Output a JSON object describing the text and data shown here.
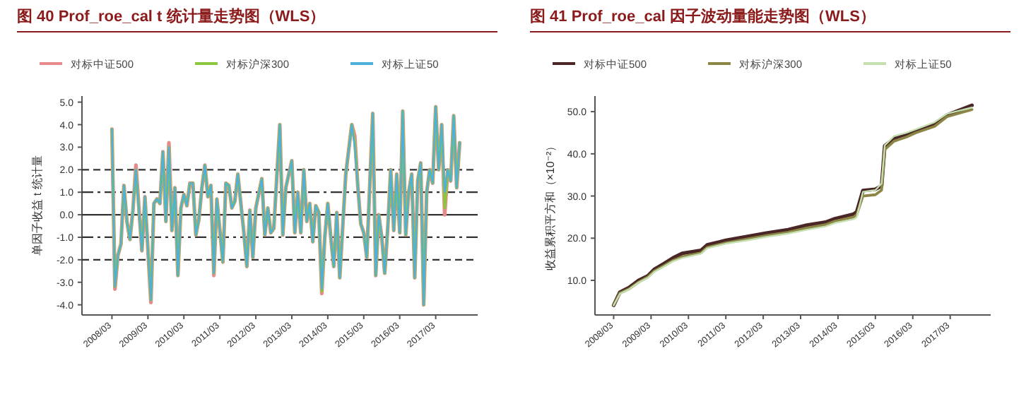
{
  "chart_data": [
    {
      "type": "line",
      "title": "图 40 Prof_roe_cal t 统计量走势图（WLS）",
      "ylabel": "单因子收益 t 统计量",
      "legend": "top",
      "xlim": [
        "2007-05",
        "2018-05"
      ],
      "ylim": [
        -4.45,
        5.27
      ],
      "yticks": [
        {
          "value": -4,
          "label": "-4.0"
        },
        {
          "value": -3,
          "label": "-3.0"
        },
        {
          "value": -2,
          "label": "-2.0"
        },
        {
          "value": -1,
          "label": "-1.0"
        },
        {
          "value": 0,
          "label": "0.0"
        },
        {
          "value": 1,
          "label": "1.0"
        },
        {
          "value": 2,
          "label": "2.0"
        },
        {
          "value": 3,
          "label": "3.0"
        },
        {
          "value": 4,
          "label": "4.0"
        },
        {
          "value": 5,
          "label": "5.0"
        }
      ],
      "xticks": [
        {
          "value": "2008-03",
          "label": "2008/03"
        },
        {
          "value": "2009-03",
          "label": "2009/03"
        },
        {
          "value": "2010-03",
          "label": "2010/03"
        },
        {
          "value": "2011-03",
          "label": "2011/03"
        },
        {
          "value": "2012-03",
          "label": "2012/03"
        },
        {
          "value": "2013-03",
          "label": "2013/03"
        },
        {
          "value": "2014-03",
          "label": "2014/03"
        },
        {
          "value": "2015-03",
          "label": "2015/03"
        },
        {
          "value": "2016-03",
          "label": "2016/03"
        },
        {
          "value": "2017-03",
          "label": "2017/03"
        }
      ],
      "ref_lines": [
        {
          "axis": "y",
          "value": 2,
          "line_style": "dashed",
          "color": "#333333"
        },
        {
          "axis": "y",
          "value": 1,
          "line_style": "dashdot",
          "color": "#333333"
        },
        {
          "axis": "y",
          "value": 0,
          "line_style": "solid",
          "color": "#333333"
        },
        {
          "axis": "y",
          "value": -1,
          "line_style": "dashdot",
          "color": "#333333"
        },
        {
          "axis": "y",
          "value": -2,
          "line_style": "dashed",
          "color": "#333333"
        }
      ],
      "x": [
        "2008-03",
        "2008-04",
        "2008-05",
        "2008-06",
        "2008-07",
        "2008-08",
        "2008-09",
        "2008-10",
        "2008-11",
        "2009-01",
        "2009-02",
        "2009-04",
        "2009-05",
        "2009-06",
        "2009-07",
        "2009-08",
        "2009-09",
        "2009-10",
        "2009-11",
        "2009-12",
        "2010-01",
        "2010-02",
        "2010-03",
        "2010-04",
        "2010-05",
        "2010-06",
        "2010-07",
        "2010-08",
        "2010-09",
        "2010-10",
        "2010-11",
        "2010-12",
        "2011-01",
        "2011-02",
        "2011-03",
        "2011-04",
        "2011-05",
        "2011-06",
        "2011-07",
        "2011-08",
        "2011-09",
        "2011-11",
        "2011-12",
        "2012-01",
        "2012-02",
        "2012-03",
        "2012-05",
        "2012-06",
        "2012-07",
        "2012-08",
        "2012-09",
        "2012-11",
        "2012-12",
        "2013-01",
        "2013-03",
        "2013-04",
        "2013-05",
        "2013-06",
        "2013-07",
        "2013-08",
        "2013-09",
        "2013-10",
        "2013-11",
        "2013-12",
        "2014-01",
        "2014-02",
        "2014-03",
        "2014-04",
        "2014-05",
        "2014-06",
        "2014-07",
        "2014-09",
        "2014-11",
        "2014-12",
        "2015-01",
        "2015-02",
        "2015-03",
        "2015-04",
        "2015-06",
        "2015-07",
        "2015-08",
        "2015-09",
        "2015-10",
        "2015-11",
        "2015-12",
        "2016-01",
        "2016-02",
        "2016-03",
        "2016-04",
        "2016-05",
        "2016-06",
        "2016-07",
        "2016-08",
        "2016-09",
        "2016-10",
        "2016-11",
        "2016-12",
        "2017-01",
        "2017-02",
        "2017-03",
        "2017-04",
        "2017-05",
        "2017-06",
        "2017-07",
        "2017-08",
        "2017-09",
        "2017-10",
        "2017-11"
      ],
      "series": [
        {
          "name": "对标中证500",
          "color": "#e8898c",
          "values": [
            3.8,
            -3.3,
            -1.8,
            -1.3,
            1.3,
            -0.3,
            -1.1,
            0.2,
            2.2,
            -1.6,
            0.8,
            -3.9,
            0.5,
            0.7,
            0.5,
            2.8,
            -0.3,
            3.2,
            -0.7,
            1.2,
            -2.7,
            0.3,
            0.9,
            0.4,
            1.4,
            1.4,
            -0.9,
            -0.2,
            1.2,
            2.2,
            0.8,
            1.3,
            -2.7,
            0.7,
            -0.7,
            -2.1,
            1.4,
            1.3,
            0.3,
            0.6,
            1.8,
            -0.8,
            -2.3,
            0.2,
            -1.9,
            0.3,
            1.6,
            -0.9,
            0.3,
            -0.8,
            -0.6,
            4.0,
            -0.9,
            1.2,
            2.4,
            -0.8,
            1.0,
            -0.8,
            2.0,
            -0.3,
            0.5,
            -1.2,
            0.4,
            0.1,
            -3.5,
            -1.0,
            0.5,
            -1.0,
            -2.3,
            0.1,
            -2.8,
            1.8,
            4.0,
            3.5,
            1.3,
            -0.4,
            -0.8,
            -1.9,
            4.5,
            -2.7,
            0.0,
            -1.0,
            -2.6,
            -0.6,
            2.0,
            -0.7,
            1.8,
            -0.8,
            4.6,
            -0.9,
            1.0,
            1.8,
            -2.8,
            1.5,
            2.3,
            -4.0,
            1.0,
            2.0,
            1.4,
            4.8,
            2.0,
            4.0,
            0.0,
            2.0,
            1.5,
            4.4,
            1.2,
            3.2
          ]
        },
        {
          "name": "对标沪深300",
          "color": "#8cc63f",
          "values": [
            3.8,
            -3.2,
            -1.8,
            -1.3,
            1.3,
            -0.3,
            -1.1,
            0.2,
            2.0,
            -1.6,
            0.8,
            -3.8,
            0.5,
            0.7,
            0.5,
            2.8,
            -0.3,
            3.0,
            -0.7,
            1.2,
            -2.7,
            0.3,
            0.9,
            0.4,
            1.4,
            1.4,
            -0.9,
            -0.2,
            1.2,
            2.2,
            0.8,
            1.3,
            -2.6,
            0.7,
            -0.7,
            -2.1,
            1.4,
            1.3,
            0.3,
            0.6,
            1.8,
            -0.8,
            -2.3,
            0.2,
            -1.9,
            0.3,
            1.6,
            -0.9,
            0.3,
            -0.8,
            -0.6,
            4.0,
            -0.9,
            1.2,
            2.4,
            -0.8,
            1.0,
            -0.8,
            2.0,
            -0.3,
            0.5,
            -1.2,
            0.4,
            0.1,
            -3.4,
            -1.0,
            0.5,
            -1.0,
            -2.3,
            0.1,
            -2.8,
            1.8,
            4.0,
            3.2,
            1.3,
            -0.4,
            -0.8,
            -1.9,
            4.5,
            -2.7,
            0.0,
            -1.0,
            -2.6,
            -0.6,
            2.0,
            -0.7,
            1.8,
            -0.8,
            4.6,
            -0.9,
            1.0,
            1.8,
            -2.8,
            1.5,
            2.3,
            -4.0,
            1.0,
            2.0,
            1.4,
            4.8,
            2.0,
            4.0,
            0.3,
            2.0,
            1.5,
            4.4,
            1.2,
            3.2
          ]
        },
        {
          "name": "对标上证50",
          "color": "#4fb0dc",
          "values": [
            3.8,
            -3.2,
            -1.8,
            -1.3,
            1.3,
            -0.3,
            -1.1,
            0.2,
            2.0,
            -1.6,
            0.8,
            -3.8,
            0.5,
            0.7,
            0.5,
            2.8,
            -0.3,
            3.0,
            -0.7,
            1.2,
            -2.7,
            0.3,
            0.9,
            0.4,
            1.4,
            1.4,
            -0.9,
            -0.2,
            1.2,
            2.2,
            0.8,
            1.3,
            -2.6,
            0.7,
            -0.7,
            -2.1,
            1.4,
            1.3,
            0.3,
            0.6,
            1.8,
            -0.8,
            -2.3,
            0.2,
            -1.9,
            0.3,
            1.6,
            -0.9,
            0.3,
            -0.8,
            -0.6,
            4.0,
            -0.9,
            1.2,
            2.4,
            -0.8,
            1.0,
            -0.8,
            2.0,
            -0.3,
            0.5,
            -1.2,
            0.4,
            0.1,
            -3.3,
            -1.0,
            0.5,
            -1.0,
            -2.3,
            0.1,
            -2.8,
            1.8,
            4.0,
            3.0,
            1.3,
            -0.4,
            -0.8,
            -1.9,
            4.5,
            -2.7,
            0.0,
            -1.0,
            -2.6,
            -0.6,
            2.0,
            -0.7,
            1.8,
            -0.8,
            4.6,
            -0.9,
            1.0,
            1.8,
            -2.8,
            1.5,
            2.3,
            -4.0,
            1.0,
            2.0,
            1.4,
            4.8,
            2.0,
            4.0,
            1.0,
            2.0,
            1.5,
            4.4,
            1.2,
            3.2
          ]
        }
      ]
    },
    {
      "type": "line",
      "title": "图 41 Prof_roe_cal 因子波动量能走势图（WLS）",
      "ylabel": "收益累积平方和（×10⁻²）",
      "legend": "top",
      "xlim": [
        "2007-09",
        "2018-04"
      ],
      "ylim": [
        1.8,
        53.7
      ],
      "yticks": [
        {
          "value": 10,
          "label": "10.0"
        },
        {
          "value": 20,
          "label": "20.0"
        },
        {
          "value": 30,
          "label": "30.0"
        },
        {
          "value": 40,
          "label": "40.0"
        },
        {
          "value": 50,
          "label": "50.0"
        }
      ],
      "xticks": [
        {
          "value": "2008-03",
          "label": "2008/03"
        },
        {
          "value": "2009-03",
          "label": "2009/03"
        },
        {
          "value": "2010-03",
          "label": "2010/03"
        },
        {
          "value": "2011-03",
          "label": "2011/03"
        },
        {
          "value": "2012-03",
          "label": "2012/03"
        },
        {
          "value": "2013-03",
          "label": "2013/03"
        },
        {
          "value": "2014-03",
          "label": "2014/03"
        },
        {
          "value": "2015-03",
          "label": "2015/03"
        },
        {
          "value": "2016-03",
          "label": "2016/03"
        },
        {
          "value": "2017-03",
          "label": "2017/03"
        }
      ],
      "x": [
        "2008-03",
        "2008-05",
        "2008-08",
        "2008-11",
        "2009-02",
        "2009-04",
        "2009-07",
        "2009-10",
        "2010-01",
        "2010-07",
        "2010-09",
        "2011-03",
        "2011-10",
        "2012-04",
        "2012-11",
        "2013-05",
        "2013-11",
        "2014-02",
        "2014-08",
        "2014-09",
        "2014-11",
        "2015-03",
        "2015-05",
        "2015-06",
        "2015-09",
        "2016-01",
        "2016-04",
        "2016-10",
        "2017-02",
        "2017-10"
      ],
      "series": [
        {
          "name": "对标中证500",
          "color": "#4a2626",
          "values": [
            4.1,
            7.2,
            8.3,
            10.0,
            11.1,
            12.6,
            13.9,
            15.3,
            16.4,
            17.1,
            18.4,
            19.5,
            20.4,
            21.2,
            22.0,
            23.1,
            23.8,
            24.6,
            25.7,
            26.2,
            31.3,
            31.6,
            32.4,
            41.9,
            43.6,
            44.4,
            45.3,
            47.0,
            49.2,
            51.5
          ]
        },
        {
          "name": "对标沪深300",
          "color": "#8b8646",
          "values": [
            4.1,
            7.0,
            8.0,
            9.6,
            10.8,
            12.2,
            13.4,
            14.7,
            15.6,
            16.5,
            17.8,
            18.9,
            19.8,
            20.6,
            21.4,
            22.4,
            23.2,
            24.0,
            25.0,
            25.5,
            30.0,
            30.3,
            31.4,
            41.0,
            43.0,
            44.0,
            45.0,
            46.5,
            48.8,
            50.5
          ]
        },
        {
          "name": "对标上证50",
          "color": "#c5e0b0",
          "values": [
            4.1,
            6.8,
            7.9,
            9.5,
            10.6,
            12.0,
            13.2,
            14.5,
            15.3,
            16.3,
            17.6,
            18.7,
            19.5,
            20.3,
            21.1,
            22.0,
            22.8,
            23.6,
            24.5,
            25.0,
            31.0,
            31.4,
            33.0,
            42.0,
            44.2,
            45.0,
            45.8,
            47.5,
            49.5,
            51.0
          ]
        }
      ]
    }
  ]
}
